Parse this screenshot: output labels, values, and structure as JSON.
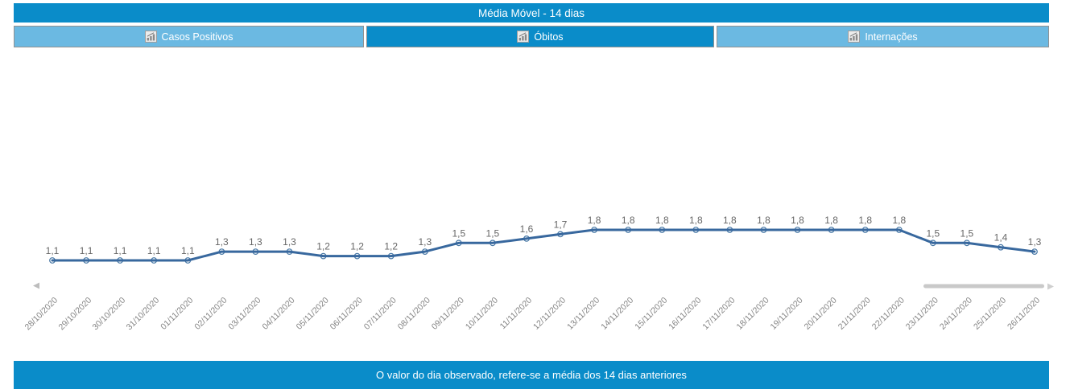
{
  "header": {
    "title": "Média Móvel - 14 dias"
  },
  "tabs": [
    {
      "label": "Casos Positivos",
      "active": false
    },
    {
      "label": "Óbitos",
      "active": true
    },
    {
      "label": "Internações",
      "active": false
    }
  ],
  "footer": {
    "note": "O valor do dia observado, refere-se a média dos 14 dias anteriores"
  },
  "colors": {
    "banner_blue": "#0a8cc9",
    "tab_inactive_blue": "#6bb9e2",
    "tab_border": "#919191",
    "line_blue": "#38689e",
    "marker_stroke": "#4677a5",
    "point_label_gray": "#666666",
    "date_label_gray": "#848484",
    "scrollbar_gray": "#c9c9c9",
    "scroll_arrow_gray": "#bdbdbd"
  },
  "chart_data": {
    "type": "line",
    "title": "Média Móvel - 14 dias",
    "x": [
      "28/10/2020",
      "29/10/2020",
      "30/10/2020",
      "31/10/2020",
      "01/11/2020",
      "02/11/2020",
      "03/11/2020",
      "04/11/2020",
      "05/11/2020",
      "06/11/2020",
      "07/11/2020",
      "08/11/2020",
      "09/11/2020",
      "10/11/2020",
      "11/11/2020",
      "12/11/2020",
      "13/11/2020",
      "14/11/2020",
      "15/11/2020",
      "16/11/2020",
      "17/11/2020",
      "18/11/2020",
      "19/11/2020",
      "20/11/2020",
      "21/11/2020",
      "22/11/2020",
      "23/11/2020",
      "24/11/2020",
      "25/11/2020",
      "26/11/2020"
    ],
    "values": [
      1.1,
      1.1,
      1.1,
      1.1,
      1.1,
      1.3,
      1.3,
      1.3,
      1.2,
      1.2,
      1.2,
      1.3,
      1.5,
      1.5,
      1.6,
      1.7,
      1.8,
      1.8,
      1.8,
      1.8,
      1.8,
      1.8,
      1.8,
      1.8,
      1.8,
      1.8,
      1.5,
      1.5,
      1.4,
      1.3
    ],
    "point_labels": [
      "1,1",
      "1,1",
      "1,1",
      "1,1",
      "1,1",
      "1,3",
      "1,3",
      "1,3",
      "1,2",
      "1,2",
      "1,2",
      "1,3",
      "1,5",
      "1,5",
      "1,6",
      "1,7",
      "1,8",
      "1,8",
      "1,8",
      "1,8",
      "1,8",
      "1,8",
      "1,8",
      "1,8",
      "1,8",
      "1,8",
      "1,5",
      "1,5",
      "1,4",
      "1,3"
    ],
    "decimal_separator": ",",
    "grid": false,
    "legend": null,
    "xlabel": "",
    "ylabel": "",
    "scrollbar": {
      "visible": true,
      "thumb_position": "right",
      "left_arrow": true,
      "right_arrow": true
    }
  }
}
